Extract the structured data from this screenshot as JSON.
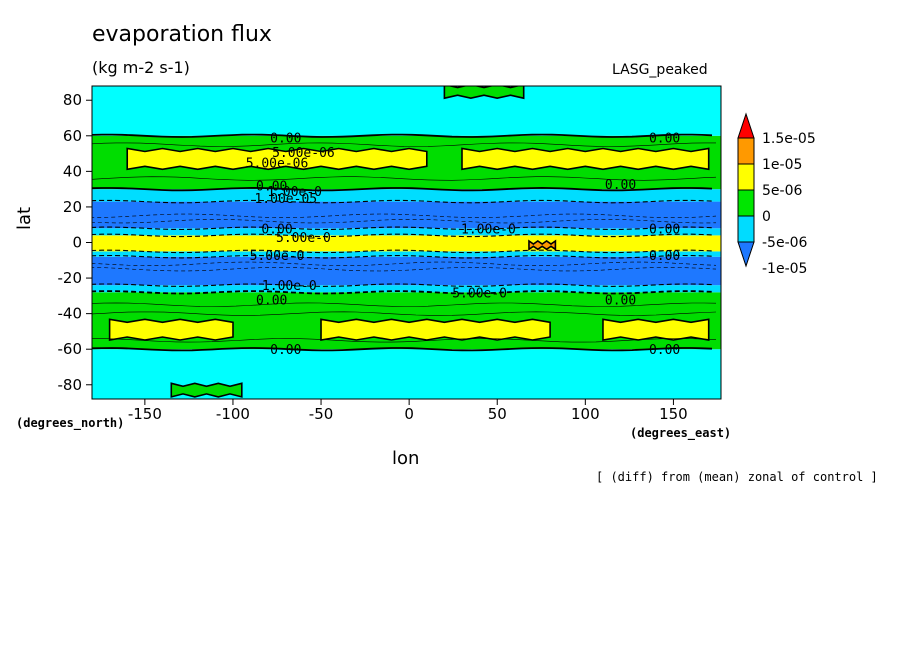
{
  "chart_data": {
    "type": "heatmap",
    "title": "evaporation flux",
    "subtitle": "(kg m-2 s-1)",
    "dataset_label": "LASG_peaked",
    "xlabel": "lon",
    "ylabel": "lat",
    "x_unit_label": "(degrees_east)",
    "y_unit_label": "(degrees_north)",
    "footnote": "[ (diff) from (mean) zonal of control ]",
    "xlim": [
      -180,
      177
    ],
    "ylim": [
      -88,
      88
    ],
    "x_ticks": [
      -150,
      -100,
      -50,
      0,
      50,
      100,
      150
    ],
    "x_tick_labels": [
      "-150",
      "-100",
      "-50",
      "0",
      "50",
      "100",
      "150"
    ],
    "y_ticks": [
      -80,
      -60,
      -40,
      -20,
      0,
      20,
      40,
      60,
      80
    ],
    "y_tick_labels": [
      "-80",
      "-60",
      "-40",
      "-20",
      "0",
      "20",
      "40",
      "60",
      "80"
    ],
    "colorbar": {
      "levels": [
        -1e-05,
        -5e-06,
        0,
        5e-06,
        1e-05,
        1.5e-05
      ],
      "labels": [
        "-1e-05",
        "-5e-06",
        "0",
        "5e-06",
        "1e-05",
        "1.5e-05"
      ],
      "colors": [
        "#1e78ff",
        "#00dcff",
        "#00e600",
        "#ffff00",
        "#ff9900",
        "#ff0000"
      ],
      "extend": "both"
    },
    "bands": [
      {
        "lat_min": -88,
        "lat_max": -60,
        "color": "#00ffff"
      },
      {
        "lat_min": -60,
        "lat_max": -28,
        "color": "#00dd00"
      },
      {
        "lat_min": -28,
        "lat_max": -24,
        "color": "#00ddff"
      },
      {
        "lat_min": -24,
        "lat_max": -8,
        "color": "#1e78ff"
      },
      {
        "lat_min": -8,
        "lat_max": -5,
        "color": "#00ddff"
      },
      {
        "lat_min": -5,
        "lat_max": 4,
        "color": "#ffff00"
      },
      {
        "lat_min": 4,
        "lat_max": 8,
        "color": "#00ddff"
      },
      {
        "lat_min": 8,
        "lat_max": 23,
        "color": "#1e78ff"
      },
      {
        "lat_min": 23,
        "lat_max": 30,
        "color": "#00ddff"
      },
      {
        "lat_min": 30,
        "lat_max": 60,
        "color": "#00dd00"
      },
      {
        "lat_min": 60,
        "lat_max": 88,
        "color": "#00ffff"
      }
    ],
    "patches": [
      {
        "lon_min": -160,
        "lon_max": 10,
        "lat_min": 42,
        "lat_max": 52,
        "color": "#ffff00"
      },
      {
        "lon_min": 30,
        "lon_max": 170,
        "lat_min": 42,
        "lat_max": 52,
        "color": "#ffff00"
      },
      {
        "lon_min": -170,
        "lon_max": -100,
        "lat_min": -54,
        "lat_max": -44,
        "color": "#ffff00"
      },
      {
        "lon_min": -50,
        "lon_max": 80,
        "lat_min": -54,
        "lat_max": -44,
        "color": "#ffff00"
      },
      {
        "lon_min": 110,
        "lon_max": 170,
        "lat_min": -54,
        "lat_max": -44,
        "color": "#ffff00"
      },
      {
        "lon_min": 20,
        "lon_max": 65,
        "lat_min": 82,
        "lat_max": 88,
        "color": "#00dd00"
      },
      {
        "lon_min": -135,
        "lon_max": -95,
        "lat_min": -86,
        "lat_max": -80,
        "color": "#00dd00"
      },
      {
        "lon_min": 68,
        "lon_max": 83,
        "lat_min": -3,
        "lat_max": 0,
        "color": "#ff9900"
      }
    ],
    "contour_labels": [
      {
        "lon": -70,
        "lat": 59,
        "text": "0.00"
      },
      {
        "lon": 145,
        "lat": 59,
        "text": "0.00"
      },
      {
        "lon": -60,
        "lat": 51,
        "text": "5.00e-06"
      },
      {
        "lon": -75,
        "lat": 45,
        "text": "5.00e-06"
      },
      {
        "lon": -78,
        "lat": 32,
        "text": "0.00"
      },
      {
        "lon": 120,
        "lat": 33,
        "text": "0.00"
      },
      {
        "lon": -65,
        "lat": 29,
        "text": "1.00e-0"
      },
      {
        "lon": -70,
        "lat": 25,
        "text": "1.00e-05"
      },
      {
        "lon": 45,
        "lat": 8,
        "text": "1.00e-0"
      },
      {
        "lon": -75,
        "lat": 8,
        "text": "0.00"
      },
      {
        "lon": -60,
        "lat": 3,
        "text": "5.00e-0"
      },
      {
        "lon": -75,
        "lat": -7,
        "text": "5.00e-0"
      },
      {
        "lon": 145,
        "lat": -7,
        "text": "0.00"
      },
      {
        "lon": 145,
        "lat": 8,
        "text": "0.00"
      },
      {
        "lon": -68,
        "lat": -24,
        "text": "1.00e-0"
      },
      {
        "lon": 40,
        "lat": -28,
        "text": "5.00e-0"
      },
      {
        "lon": -78,
        "lat": -32,
        "text": "0.00"
      },
      {
        "lon": 120,
        "lat": -32,
        "text": "0.00"
      },
      {
        "lon": -70,
        "lat": -60,
        "text": "0.00"
      },
      {
        "lon": 145,
        "lat": -60,
        "text": "0.00"
      }
    ]
  }
}
